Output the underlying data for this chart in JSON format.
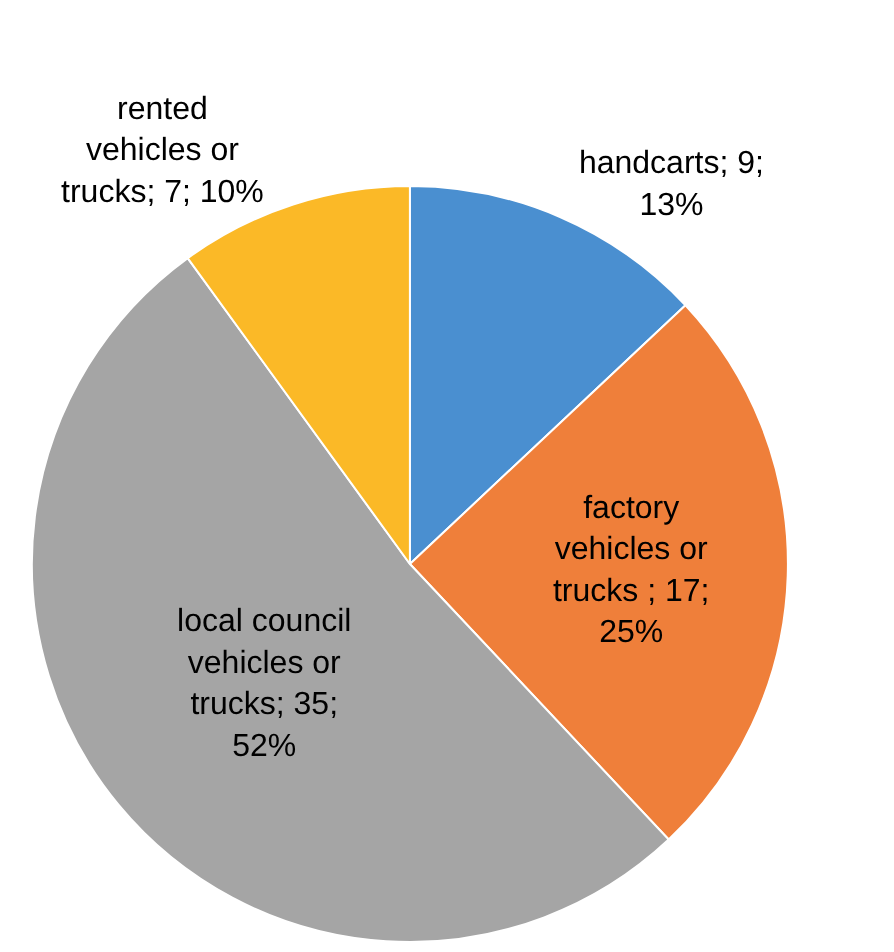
{
  "chart_data": {
    "type": "pie",
    "categories": [
      "handcarts; 9; 13%",
      "factory vehicles or trucks ; 17; 25%",
      "local council vehicles or trucks; 35; 52%",
      "rented vehicles or trucks; 7; 10%"
    ],
    "values": [
      13,
      25,
      52,
      10
    ],
    "colors": [
      "#4a8fd0",
      "#ef7f3a",
      "#a5a5a5",
      "#fbb927"
    ],
    "legend": false
  }
}
